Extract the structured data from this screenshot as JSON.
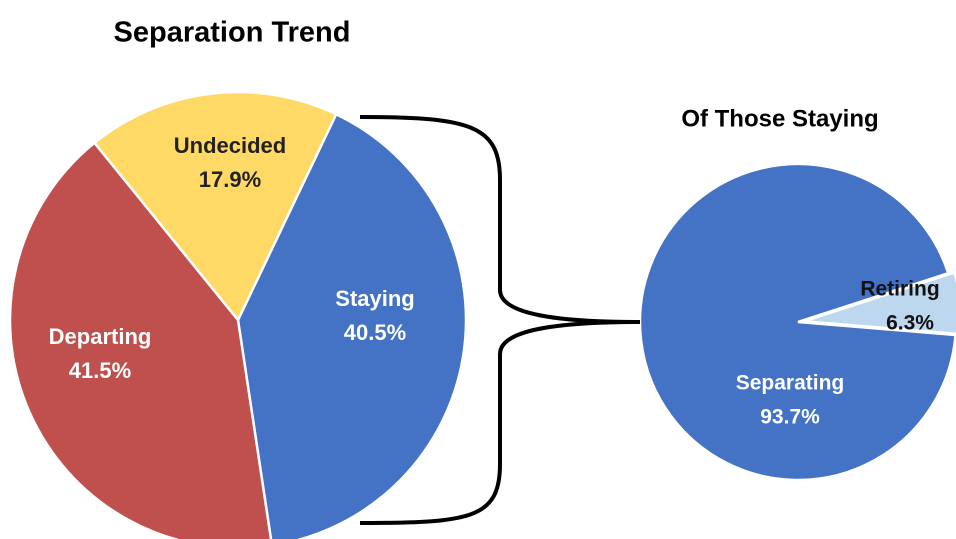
{
  "chart_data": [
    {
      "type": "pie",
      "title": "Separation Trend",
      "categories": [
        "Staying",
        "Departing",
        "Undecided"
      ],
      "values": [
        40.5,
        41.5,
        17.9
      ],
      "value_labels": [
        "40.5%",
        "41.5%",
        "17.9%"
      ],
      "colors": [
        "#4472c4",
        "#c0504d",
        "#ffd966"
      ]
    },
    {
      "type": "pie",
      "title": "Of Those Staying",
      "categories": [
        "Separating",
        "Retiring"
      ],
      "values": [
        93.7,
        6.3
      ],
      "value_labels": [
        "93.7%",
        "6.3%"
      ],
      "colors": [
        "#4472c4",
        "#bdd7ee"
      ]
    }
  ]
}
